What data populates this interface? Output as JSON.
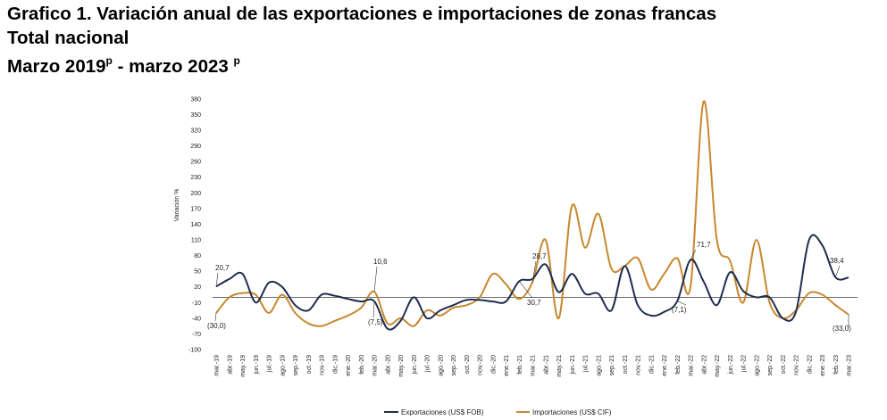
{
  "header": {
    "line1": "Grafico 1. Variación anual de las exportaciones e importaciones de zonas francas",
    "line2": "Total nacional",
    "line3_a": "Marzo 2019",
    "line3_b": "p",
    "line3_c": " - marzo 2023 ",
    "line3_d": "p"
  },
  "chart_data": {
    "type": "line",
    "ylabel": "Variación %",
    "ylim": [
      -100,
      390
    ],
    "yticks": [
      -100,
      -70,
      -40,
      -10,
      20,
      50,
      80,
      110,
      140,
      170,
      200,
      230,
      260,
      290,
      320,
      350,
      380
    ],
    "categories": [
      "mar.-19",
      "abr.-19",
      "may.-19",
      "jun.-19",
      "jul.-19",
      "ago.-19",
      "sep.-19",
      "oct.-19",
      "nov.-19",
      "dic.-19",
      "ene.-20",
      "feb.-20",
      "mar.-20",
      "abr.-20",
      "may.-20",
      "jun.-20",
      "jul.-20",
      "ago.-20",
      "sep.-20",
      "oct.-20",
      "nov.-20",
      "dic.-20",
      "ene.-21",
      "feb.-21",
      "mar.-21",
      "abr.-21",
      "may.-21",
      "jun.-21",
      "jul.-21",
      "ago.-21",
      "sep.-21",
      "oct.-21",
      "nov.-21",
      "dic.-21",
      "ene.-22",
      "feb.-22",
      "mar.-22",
      "abr.-22",
      "may.-22",
      "jun.-22",
      "jul.-22",
      "ago.-22",
      "sep.-22",
      "oct.-22",
      "nov.-22",
      "dic.-22",
      "ene.-23",
      "feb.-23",
      "mar.-23"
    ],
    "series": [
      {
        "name": "Exportaciones (US$ FOB)",
        "color": "#1f2d4e",
        "values": [
          20.7,
          35,
          45,
          -10,
          28,
          20,
          -15,
          -25,
          5,
          3,
          -3,
          -8,
          -7.5,
          -60,
          -45,
          0,
          -40,
          -25,
          -15,
          -5,
          -5,
          -8,
          -8,
          30.7,
          35,
          63,
          10,
          45,
          7,
          7,
          -25,
          60,
          -15,
          -35,
          -28,
          -7.1,
          71.7,
          30,
          -15,
          48,
          12,
          0,
          0,
          -40,
          -28,
          110,
          100,
          38.4,
          38
        ]
      },
      {
        "name": "Importaciones (US$ CIF)",
        "color": "#c8872e",
        "values": [
          -30.0,
          0,
          8,
          5,
          -30,
          5,
          -30,
          -50,
          -55,
          -45,
          -35,
          -20,
          10.6,
          -50,
          -40,
          -55,
          -25,
          -35,
          -20,
          -15,
          0,
          45,
          25,
          -3,
          28.7,
          110,
          -40,
          175,
          95,
          160,
          55,
          60,
          75,
          15,
          45,
          75,
          20,
          375,
          110,
          70,
          -10,
          110,
          -10,
          -40,
          -25,
          8,
          5,
          -15,
          -33.0
        ]
      }
    ],
    "annotations": [
      "20,7",
      "(30,0)",
      "10,6",
      "(7,5)",
      "28,7",
      "30,7",
      "71,7",
      "(7,1)",
      "38,4",
      "(33,0)"
    ],
    "legend_position": "bottom"
  }
}
